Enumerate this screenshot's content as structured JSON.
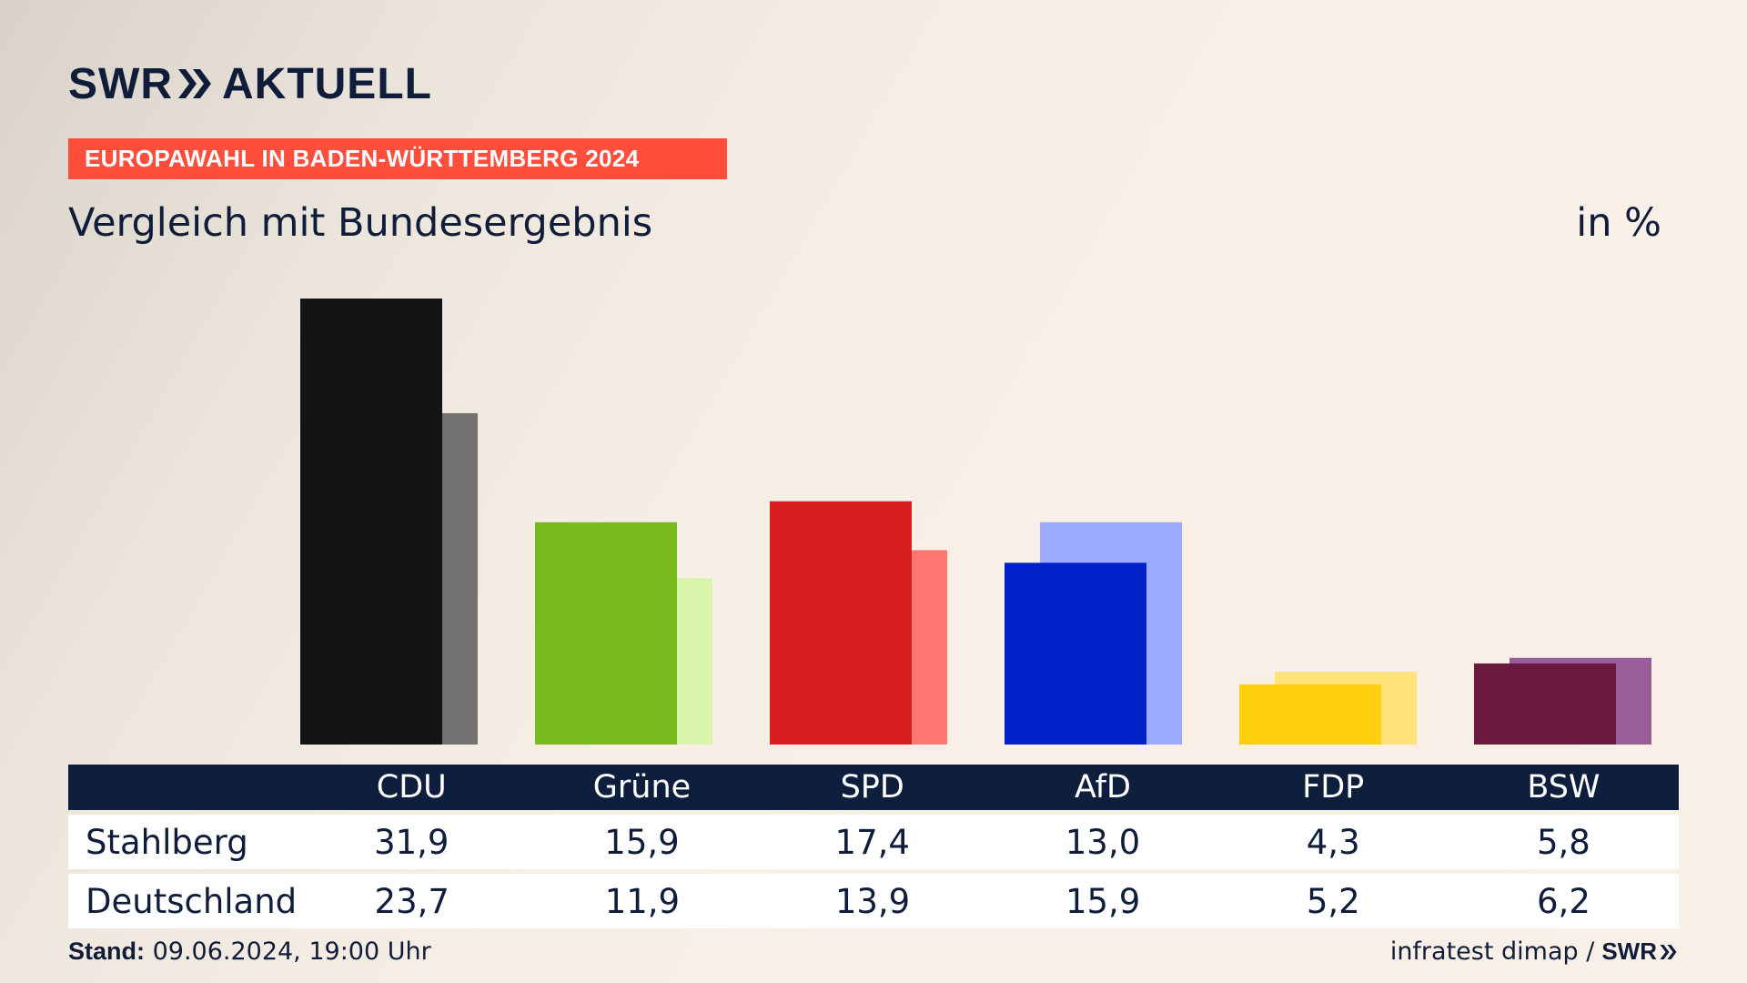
{
  "header": {
    "logo_text_left": "SWR",
    "logo_text_right": "AKTUELL",
    "banner": "EUROPAWAHL IN BADEN-WÜRTTEMBERG 2024",
    "subtitle": "Vergleich mit Bundesergebnis",
    "unit": "in %"
  },
  "colors": {
    "banner": "#ff4f3c",
    "navy": "#0e1e3d"
  },
  "chart_data": {
    "type": "bar",
    "categories": [
      "CDU",
      "Grüne",
      "SPD",
      "AfD",
      "FDP",
      "BSW"
    ],
    "series": [
      {
        "name": "Stahlberg",
        "values": [
          31.9,
          15.9,
          17.4,
          13.0,
          4.3,
          5.8
        ],
        "colors": [
          "#141414",
          "#78bb1e",
          "#d71f1f",
          "#0021c8",
          "#ffd00f",
          "#6b1a40"
        ]
      },
      {
        "name": "Deutschland",
        "values": [
          23.7,
          11.9,
          13.9,
          15.9,
          5.2,
          6.2
        ],
        "colors": [
          "#747271",
          "#d8f5ab",
          "#ff7570",
          "#9dabff",
          "#ffe27a",
          "#9a5d99"
        ]
      }
    ],
    "display_values": {
      "Stahlberg": [
        "31,9",
        "15,9",
        "17,4",
        "13,0",
        "4,3",
        "5,8"
      ],
      "Deutschland": [
        "23,7",
        "11,9",
        "13,9",
        "15,9",
        "5,2",
        "6,2"
      ]
    },
    "ylim": [
      0,
      31.9
    ],
    "grid": false
  },
  "footer": {
    "stand_label": "Stand:",
    "stand_value": "09.06.2024, 19:00 Uhr",
    "source": "infratest dimap /",
    "source_logo": "SWR"
  }
}
